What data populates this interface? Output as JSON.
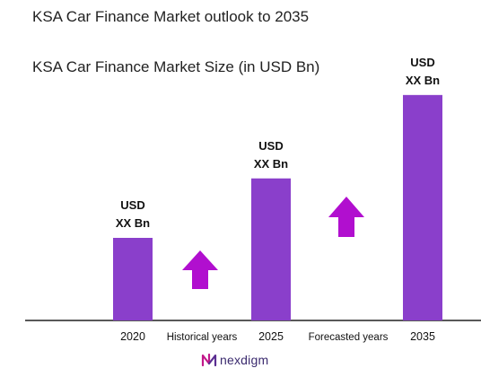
{
  "title": "KSA Car Finance Market outlook to 2035",
  "subtitle": "KSA Car Finance Market Size (in USD Bn)",
  "chart_data": {
    "type": "bar",
    "categories": [
      "2020",
      "2025",
      "2035"
    ],
    "values": [
      1,
      1.72,
      2.73
    ],
    "value_label_line1": "USD",
    "value_label_line2": "XX Bn",
    "period_labels": [
      "Historical years",
      "Forecasted years"
    ],
    "bar_color": "#8a3fcb",
    "arrow_color": "#b10fcf",
    "grid": false,
    "legend": "none"
  },
  "branding": {
    "logo_text": "nexdigm",
    "logo_icon": "nexdigm-logo-icon"
  }
}
